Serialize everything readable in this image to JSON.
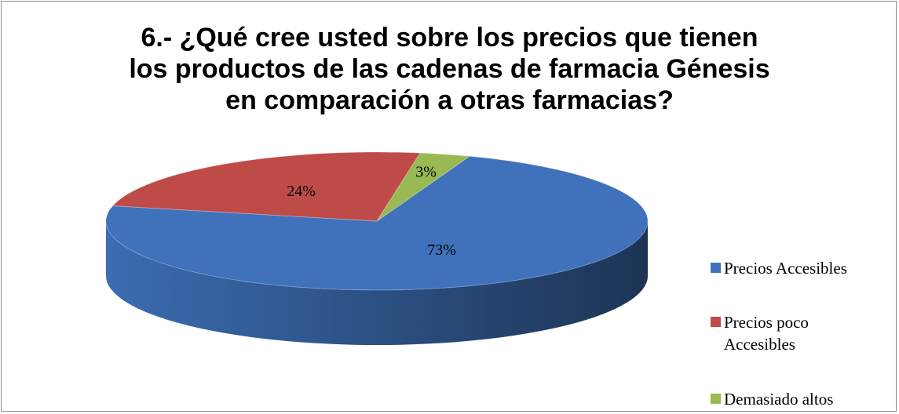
{
  "chart_data": {
    "type": "pie",
    "title": "6.- ¿Qué cree usted sobre los precios que tienen los productos de las cadenas de farmacia Génesis en comparación a otras farmacias?",
    "categories": [
      "Precios Accesibles",
      "Precios poco Accesibles",
      "Demasiado altos"
    ],
    "values": [
      73,
      24,
      3
    ],
    "value_labels": [
      "73%",
      "24%",
      "3%"
    ],
    "colors": [
      "#3f72bb",
      "#be4b48",
      "#98b954"
    ],
    "legend": "right"
  }
}
